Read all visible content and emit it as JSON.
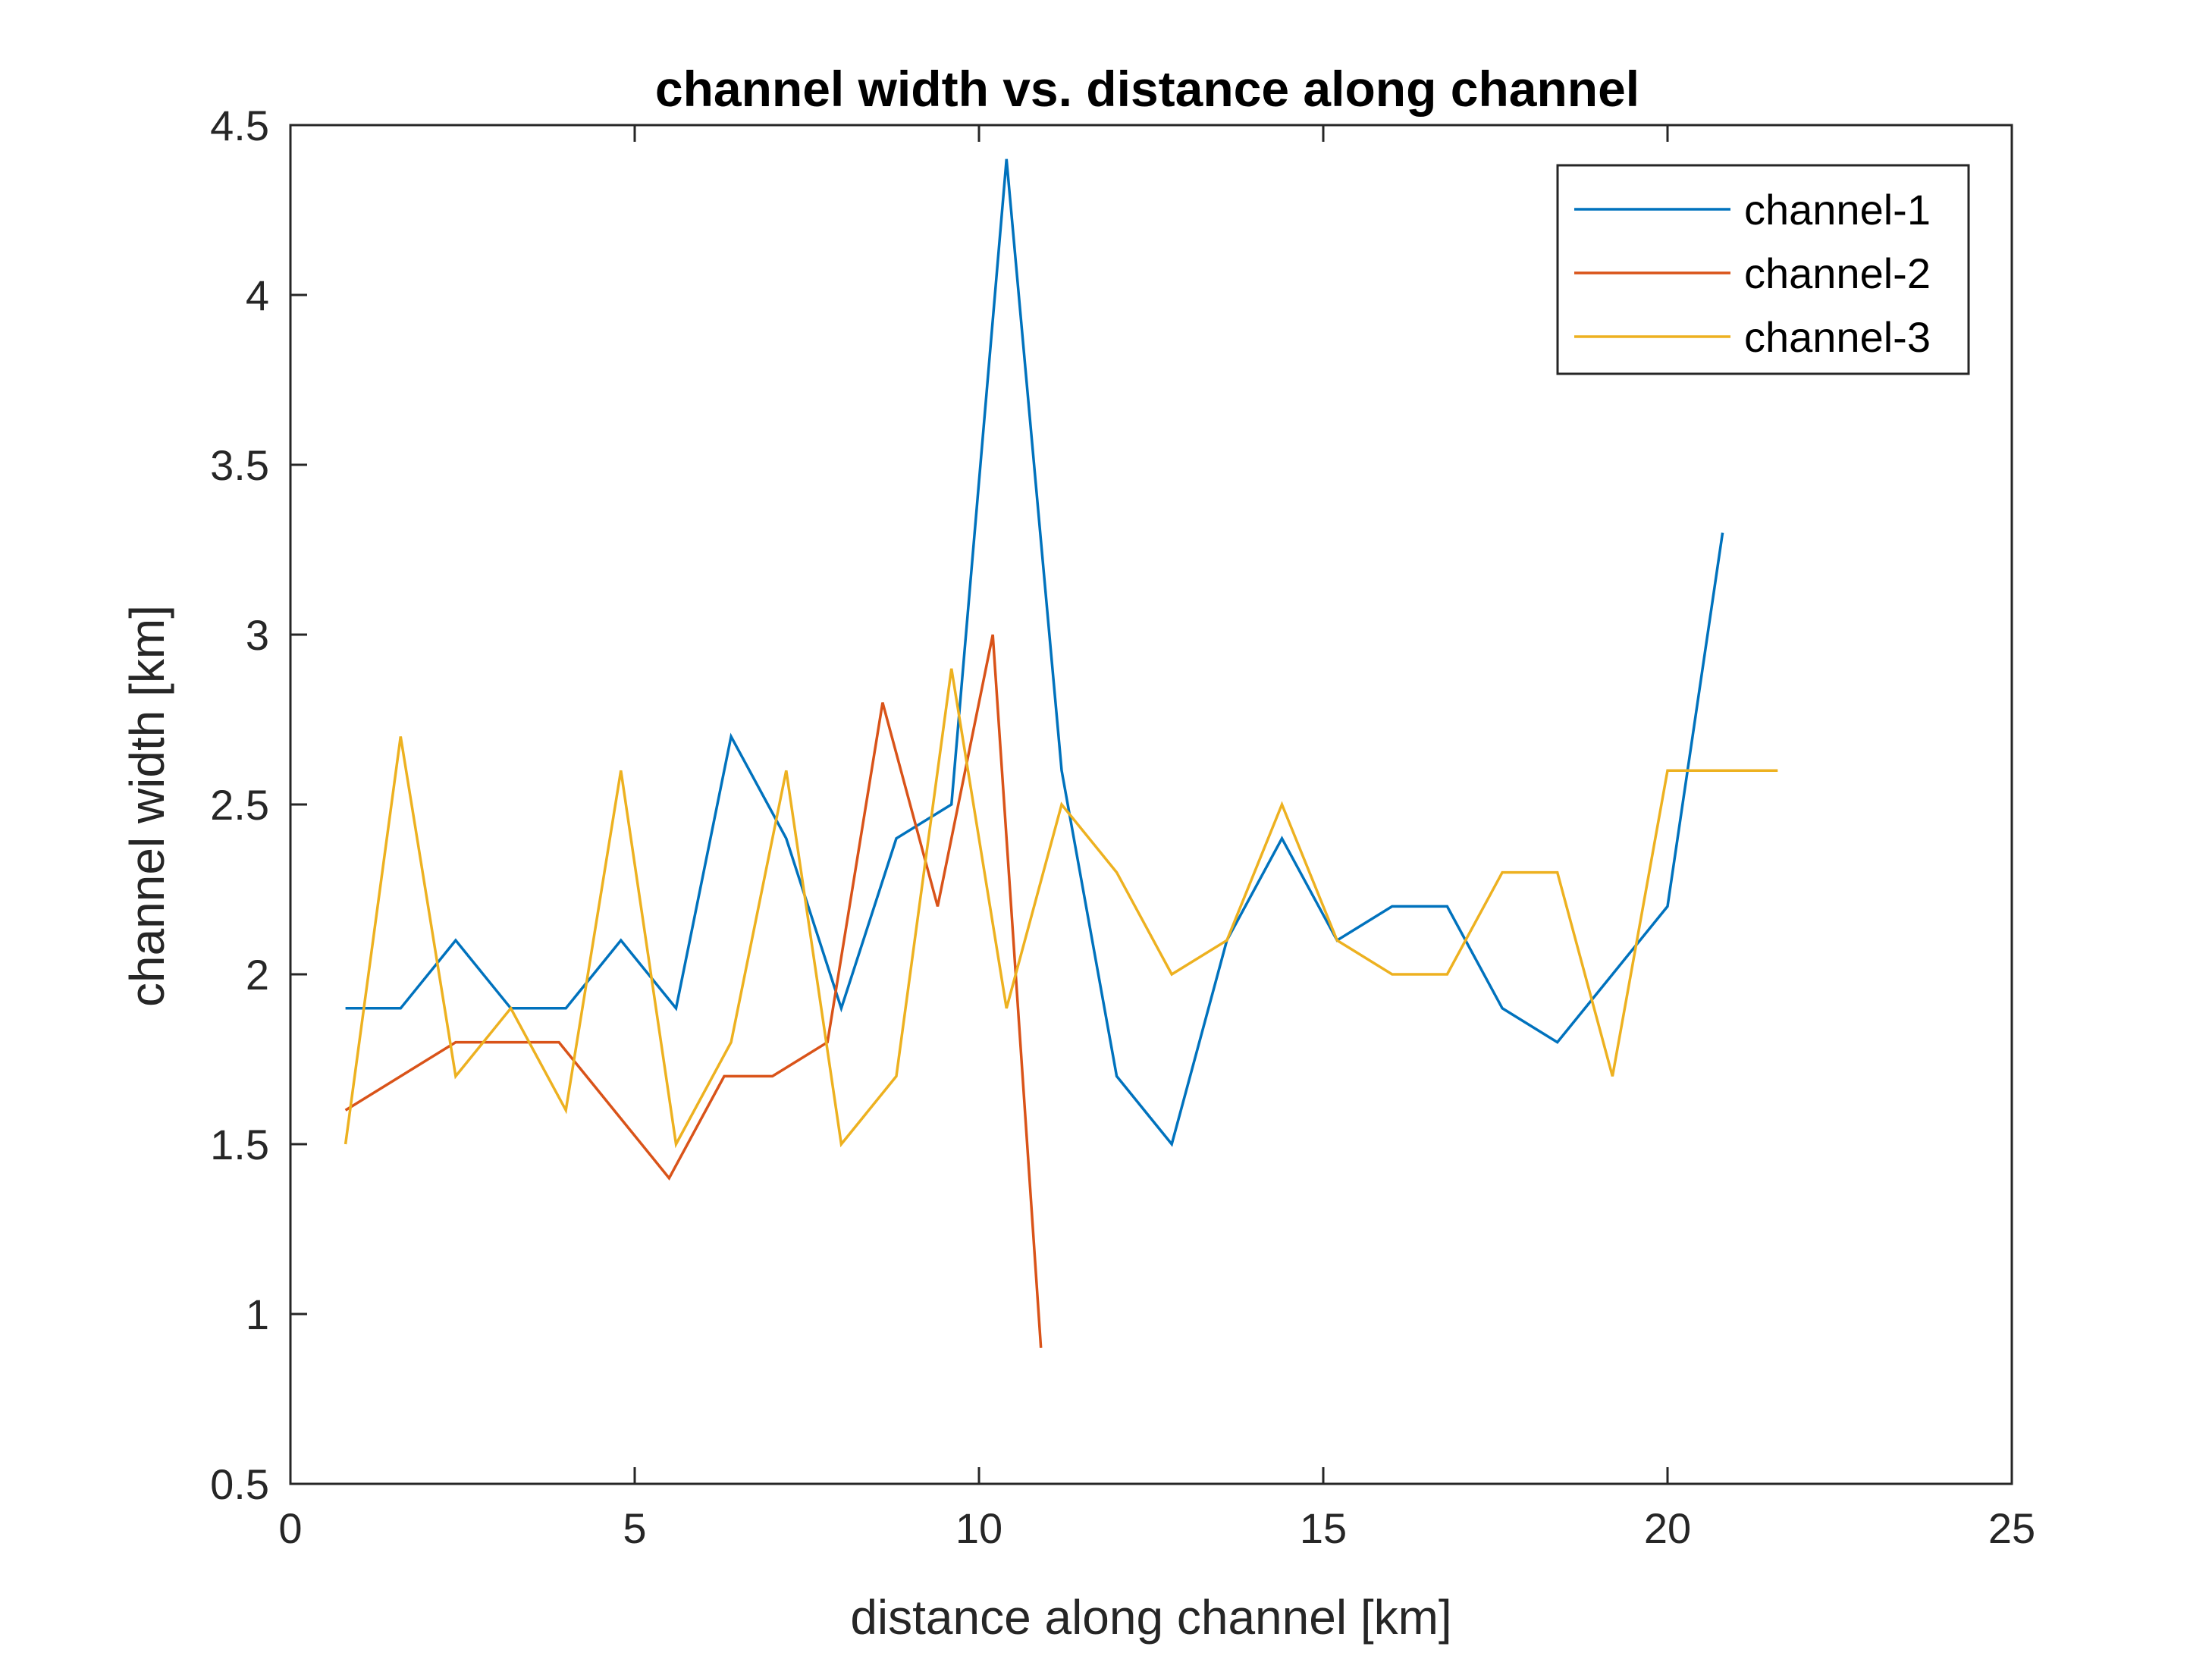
{
  "chart_data": {
    "type": "line",
    "title": "channel width vs. distance along channel",
    "xlabel": "distance along channel [km]",
    "ylabel": "channel width [km]",
    "xlim": [
      0,
      25
    ],
    "ylim": [
      0.5,
      4.5
    ],
    "xticks": [
      0,
      5,
      10,
      15,
      20,
      25
    ],
    "yticks": [
      0.5,
      1,
      1.5,
      2,
      2.5,
      3,
      3.5,
      4,
      4.5
    ],
    "xtick_labels": [
      "0",
      "5",
      "10",
      "15",
      "20",
      "25"
    ],
    "ytick_labels": [
      "0.5",
      "1",
      "1.5",
      "2",
      "2.5",
      "3",
      "3.5",
      "4",
      "4.5"
    ],
    "grid": false,
    "legend_position": "top-right",
    "series": [
      {
        "name": "channel-1",
        "color": "#0072BD",
        "x": [
          0.8,
          1.6,
          2.4,
          3.2,
          4.0,
          4.8,
          5.6,
          6.4,
          7.2,
          8.0,
          8.8,
          9.6,
          10.4,
          11.2,
          12.0,
          12.8,
          13.6,
          14.4,
          15.2,
          16.0,
          16.8,
          17.6,
          18.4,
          19.2,
          20.0,
          20.8
        ],
        "y": [
          1.9,
          1.9,
          2.1,
          1.9,
          1.9,
          2.1,
          1.9,
          2.7,
          2.4,
          1.9,
          2.4,
          2.5,
          4.4,
          2.6,
          1.7,
          1.5,
          2.1,
          2.4,
          2.1,
          2.2,
          2.2,
          1.9,
          1.8,
          2.0,
          2.2,
          3.3
        ]
      },
      {
        "name": "channel-2",
        "color": "#D95319",
        "x": [
          0.8,
          2.4,
          3.2,
          3.9,
          5.5,
          6.3,
          7.0,
          7.8,
          8.6,
          9.4,
          10.2,
          10.9
        ],
        "y": [
          1.6,
          1.8,
          1.8,
          1.8,
          1.4,
          1.7,
          1.7,
          1.8,
          2.8,
          2.2,
          3.0,
          0.9
        ]
      },
      {
        "name": "channel-3",
        "color": "#EDB120",
        "x": [
          0.8,
          1.6,
          2.4,
          3.2,
          4.0,
          4.8,
          5.6,
          6.4,
          7.2,
          8.0,
          8.8,
          9.6,
          10.4,
          11.2,
          12.0,
          12.8,
          13.6,
          14.4,
          15.2,
          16.0,
          16.8,
          17.6,
          18.4,
          19.2,
          20.0,
          20.8,
          21.6
        ],
        "y": [
          1.5,
          2.7,
          1.7,
          1.9,
          1.6,
          2.6,
          1.5,
          1.8,
          2.6,
          1.5,
          1.7,
          2.9,
          1.9,
          2.5,
          2.3,
          2.0,
          2.1,
          2.5,
          2.1,
          2.0,
          2.0,
          2.3,
          2.3,
          1.7,
          2.6,
          2.6,
          2.6
        ]
      }
    ]
  }
}
